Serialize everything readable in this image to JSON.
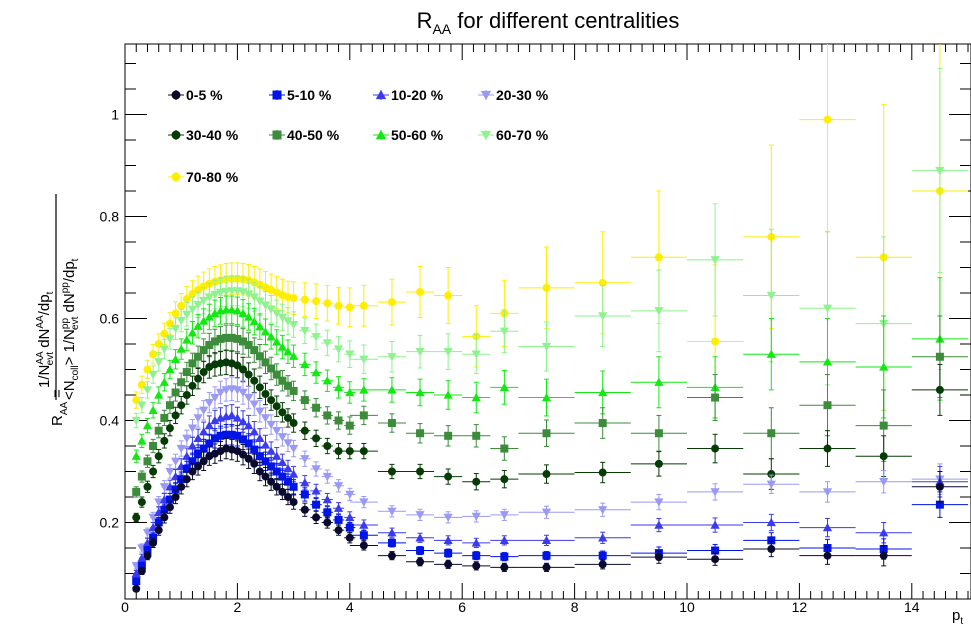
{
  "chart_data": {
    "type": "scatter",
    "title_main": "R",
    "title_sub": "AA",
    "title_rest": " for different centralities",
    "ylabel": {
      "lhs_main": "R",
      "lhs_sub": "AA",
      "eq": "=",
      "num_prefix": "1/N",
      "num_sub": "evt",
      "num_sup": "AA",
      "num_mid": " dN",
      "num_sup2": "AA",
      "num_end": "/dp",
      "num_end_sub": "t",
      "den_a": "<N",
      "den_a_sub": "coll",
      "den_b": "> 1/N",
      "den_b_sup": "pp",
      "den_b_sub": "evt",
      "den_c": " dN",
      "den_c_sup": "pp",
      "den_d": "/dp",
      "den_d_sub": "t"
    },
    "xlabel_main": "p",
    "xlabel_sub": "t",
    "xlim": [
      0,
      15
    ],
    "ylim": [
      0.05,
      1.1
    ],
    "xticks": [
      "0",
      "2",
      "4",
      "6",
      "8",
      "10",
      "12",
      "14"
    ],
    "xtick_values": [
      0,
      2,
      4,
      6,
      8,
      10,
      12,
      14
    ],
    "yticks": [
      "0.2",
      "0.4",
      "0.6",
      "0.8",
      "1"
    ],
    "ytick_values": [
      0.2,
      0.4,
      0.6,
      0.8,
      1.0
    ],
    "grid": false,
    "legend_position": "top-left",
    "x": [
      0.2,
      0.3,
      0.4,
      0.5,
      0.6,
      0.7,
      0.8,
      0.9,
      1.0,
      1.1,
      1.2,
      1.3,
      1.4,
      1.5,
      1.6,
      1.7,
      1.8,
      1.9,
      2.0,
      2.1,
      2.2,
      2.3,
      2.4,
      2.5,
      2.6,
      2.7,
      2.8,
      2.9,
      3.0,
      3.2,
      3.4,
      3.6,
      3.8,
      4.0,
      4.25,
      4.75,
      5.25,
      5.75,
      6.25,
      6.75,
      7.5,
      8.5,
      9.5,
      10.5,
      11.5,
      12.5,
      13.5,
      14.5
    ],
    "xerr": [
      0.05,
      0.05,
      0.05,
      0.05,
      0.05,
      0.05,
      0.05,
      0.05,
      0.05,
      0.05,
      0.05,
      0.05,
      0.05,
      0.05,
      0.05,
      0.05,
      0.05,
      0.05,
      0.05,
      0.05,
      0.05,
      0.05,
      0.05,
      0.05,
      0.05,
      0.05,
      0.05,
      0.05,
      0.05,
      0.1,
      0.1,
      0.1,
      0.1,
      0.1,
      0.25,
      0.25,
      0.25,
      0.25,
      0.25,
      0.25,
      0.5,
      0.5,
      0.5,
      0.5,
      0.5,
      0.5,
      0.5,
      0.5
    ],
    "series": [
      {
        "name": "0-5 %",
        "color": "#0a0a2e",
        "marker": "circle",
        "values": [
          0.07,
          0.105,
          0.135,
          0.16,
          0.185,
          0.21,
          0.23,
          0.25,
          0.27,
          0.285,
          0.3,
          0.31,
          0.32,
          0.33,
          0.335,
          0.34,
          0.345,
          0.343,
          0.34,
          0.333,
          0.325,
          0.315,
          0.3,
          0.29,
          0.28,
          0.27,
          0.26,
          0.25,
          0.24,
          0.225,
          0.21,
          0.2,
          0.185,
          0.17,
          0.155,
          0.135,
          0.123,
          0.118,
          0.115,
          0.112,
          0.112,
          0.118,
          0.132,
          0.128,
          0.148,
          0.135,
          0.135,
          0.27
        ],
        "err": [
          0.005,
          0.007,
          0.008,
          0.009,
          0.01,
          0.011,
          0.012,
          0.013,
          0.014,
          0.015,
          0.016,
          0.017,
          0.018,
          0.018,
          0.019,
          0.019,
          0.02,
          0.02,
          0.02,
          0.02,
          0.019,
          0.019,
          0.018,
          0.018,
          0.017,
          0.016,
          0.015,
          0.015,
          0.014,
          0.013,
          0.012,
          0.011,
          0.01,
          0.01,
          0.009,
          0.008,
          0.008,
          0.008,
          0.008,
          0.008,
          0.008,
          0.009,
          0.012,
          0.012,
          0.015,
          0.017,
          0.02,
          0.03
        ]
      },
      {
        "name": "5-10 %",
        "color": "#0014e6",
        "marker": "square",
        "values": [
          0.085,
          0.115,
          0.145,
          0.17,
          0.2,
          0.225,
          0.245,
          0.265,
          0.285,
          0.305,
          0.32,
          0.335,
          0.345,
          0.355,
          0.365,
          0.37,
          0.372,
          0.372,
          0.37,
          0.363,
          0.355,
          0.343,
          0.33,
          0.32,
          0.31,
          0.3,
          0.29,
          0.28,
          0.27,
          0.255,
          0.235,
          0.22,
          0.205,
          0.19,
          0.175,
          0.16,
          0.145,
          0.14,
          0.135,
          0.133,
          0.135,
          0.135,
          0.14,
          0.145,
          0.165,
          0.15,
          0.148,
          0.235
        ],
        "err": [
          0.005,
          0.007,
          0.008,
          0.009,
          0.01,
          0.011,
          0.012,
          0.013,
          0.014,
          0.015,
          0.016,
          0.017,
          0.018,
          0.018,
          0.019,
          0.019,
          0.02,
          0.02,
          0.02,
          0.02,
          0.019,
          0.019,
          0.018,
          0.018,
          0.017,
          0.016,
          0.015,
          0.015,
          0.014,
          0.013,
          0.012,
          0.011,
          0.01,
          0.01,
          0.009,
          0.008,
          0.008,
          0.008,
          0.008,
          0.008,
          0.008,
          0.009,
          0.012,
          0.012,
          0.015,
          0.017,
          0.02,
          0.025
        ]
      },
      {
        "name": "10-20 %",
        "color": "#3a3aee",
        "marker": "triangle-up",
        "values": [
          0.1,
          0.13,
          0.16,
          0.19,
          0.22,
          0.245,
          0.27,
          0.29,
          0.31,
          0.33,
          0.35,
          0.365,
          0.378,
          0.39,
          0.4,
          0.405,
          0.408,
          0.41,
          0.405,
          0.398,
          0.39,
          0.378,
          0.365,
          0.352,
          0.34,
          0.33,
          0.318,
          0.306,
          0.295,
          0.278,
          0.262,
          0.245,
          0.228,
          0.21,
          0.195,
          0.18,
          0.17,
          0.165,
          0.16,
          0.165,
          0.165,
          0.17,
          0.195,
          0.195,
          0.2,
          0.19,
          0.18,
          0.28
        ],
        "err": [
          0.006,
          0.008,
          0.009,
          0.01,
          0.011,
          0.012,
          0.013,
          0.014,
          0.015,
          0.016,
          0.017,
          0.018,
          0.019,
          0.019,
          0.02,
          0.02,
          0.021,
          0.021,
          0.021,
          0.021,
          0.02,
          0.02,
          0.019,
          0.019,
          0.018,
          0.017,
          0.016,
          0.016,
          0.015,
          0.014,
          0.013,
          0.012,
          0.011,
          0.011,
          0.01,
          0.009,
          0.009,
          0.009,
          0.009,
          0.009,
          0.01,
          0.011,
          0.013,
          0.014,
          0.016,
          0.018,
          0.02,
          0.03
        ]
      },
      {
        "name": "20-30 %",
        "color": "#9a9af6",
        "marker": "triangle-down",
        "values": [
          0.115,
          0.15,
          0.18,
          0.21,
          0.24,
          0.27,
          0.3,
          0.32,
          0.345,
          0.365,
          0.385,
          0.405,
          0.42,
          0.435,
          0.445,
          0.455,
          0.46,
          0.462,
          0.46,
          0.455,
          0.445,
          0.432,
          0.418,
          0.405,
          0.392,
          0.38,
          0.368,
          0.356,
          0.345,
          0.325,
          0.305,
          0.29,
          0.272,
          0.255,
          0.24,
          0.222,
          0.215,
          0.21,
          0.212,
          0.215,
          0.22,
          0.225,
          0.24,
          0.26,
          0.275,
          0.26,
          0.28,
          0.285
        ],
        "err": [
          0.006,
          0.008,
          0.009,
          0.01,
          0.011,
          0.012,
          0.013,
          0.014,
          0.015,
          0.016,
          0.017,
          0.018,
          0.019,
          0.02,
          0.021,
          0.022,
          0.022,
          0.023,
          0.023,
          0.023,
          0.022,
          0.022,
          0.021,
          0.02,
          0.019,
          0.018,
          0.018,
          0.017,
          0.016,
          0.015,
          0.014,
          0.013,
          0.012,
          0.012,
          0.011,
          0.011,
          0.011,
          0.011,
          0.011,
          0.011,
          0.012,
          0.013,
          0.015,
          0.016,
          0.018,
          0.02,
          0.022,
          0.03
        ]
      },
      {
        "name": "30-40 %",
        "color": "#063b06",
        "marker": "circle",
        "values": [
          0.21,
          0.24,
          0.27,
          0.3,
          0.33,
          0.36,
          0.385,
          0.41,
          0.43,
          0.45,
          0.468,
          0.482,
          0.495,
          0.505,
          0.51,
          0.512,
          0.514,
          0.512,
          0.508,
          0.5,
          0.49,
          0.478,
          0.465,
          0.452,
          0.44,
          0.428,
          0.416,
          0.405,
          0.395,
          0.38,
          0.365,
          0.35,
          0.34,
          0.34,
          0.34,
          0.3,
          0.3,
          0.29,
          0.28,
          0.285,
          0.295,
          0.298,
          0.315,
          0.345,
          0.295,
          0.345,
          0.33,
          0.46
        ],
        "err": [
          0.008,
          0.01,
          0.011,
          0.012,
          0.013,
          0.014,
          0.015,
          0.016,
          0.017,
          0.018,
          0.019,
          0.02,
          0.021,
          0.022,
          0.023,
          0.023,
          0.024,
          0.024,
          0.024,
          0.024,
          0.023,
          0.023,
          0.022,
          0.021,
          0.02,
          0.02,
          0.019,
          0.018,
          0.018,
          0.017,
          0.016,
          0.015,
          0.015,
          0.015,
          0.015,
          0.014,
          0.014,
          0.015,
          0.016,
          0.017,
          0.018,
          0.02,
          0.024,
          0.028,
          0.03,
          0.035,
          0.04,
          0.05
        ]
      },
      {
        "name": "40-50 %",
        "color": "#3c8c3c",
        "marker": "square",
        "values": [
          0.26,
          0.29,
          0.32,
          0.35,
          0.38,
          0.405,
          0.43,
          0.455,
          0.475,
          0.495,
          0.512,
          0.525,
          0.538,
          0.548,
          0.555,
          0.56,
          0.562,
          0.562,
          0.56,
          0.555,
          0.548,
          0.538,
          0.526,
          0.514,
          0.502,
          0.49,
          0.478,
          0.468,
          0.458,
          0.44,
          0.425,
          0.41,
          0.4,
          0.39,
          0.41,
          0.395,
          0.375,
          0.37,
          0.37,
          0.345,
          0.375,
          0.395,
          0.375,
          0.445,
          0.375,
          0.43,
          0.39,
          0.525
        ],
        "err": [
          0.01,
          0.011,
          0.012,
          0.013,
          0.014,
          0.015,
          0.016,
          0.017,
          0.018,
          0.019,
          0.02,
          0.021,
          0.022,
          0.023,
          0.024,
          0.024,
          0.025,
          0.025,
          0.025,
          0.025,
          0.024,
          0.024,
          0.023,
          0.022,
          0.022,
          0.021,
          0.02,
          0.02,
          0.019,
          0.018,
          0.018,
          0.017,
          0.017,
          0.017,
          0.018,
          0.018,
          0.019,
          0.02,
          0.022,
          0.023,
          0.026,
          0.03,
          0.035,
          0.045,
          0.05,
          0.06,
          0.07,
          0.08
        ]
      },
      {
        "name": "50-60 %",
        "color": "#12e812",
        "marker": "triangle-up",
        "values": [
          0.33,
          0.36,
          0.39,
          0.42,
          0.45,
          0.475,
          0.5,
          0.52,
          0.54,
          0.558,
          0.572,
          0.585,
          0.595,
          0.603,
          0.61,
          0.615,
          0.617,
          0.617,
          0.615,
          0.61,
          0.603,
          0.594,
          0.584,
          0.574,
          0.564,
          0.554,
          0.544,
          0.535,
          0.526,
          0.51,
          0.494,
          0.478,
          0.465,
          0.455,
          0.46,
          0.46,
          0.455,
          0.45,
          0.445,
          0.465,
          0.445,
          0.455,
          0.475,
          0.465,
          0.53,
          0.515,
          0.505,
          0.56
        ],
        "err": [
          0.012,
          0.013,
          0.014,
          0.015,
          0.016,
          0.017,
          0.018,
          0.019,
          0.02,
          0.021,
          0.022,
          0.023,
          0.024,
          0.025,
          0.026,
          0.026,
          0.027,
          0.027,
          0.027,
          0.027,
          0.026,
          0.026,
          0.025,
          0.025,
          0.024,
          0.024,
          0.023,
          0.023,
          0.022,
          0.022,
          0.021,
          0.021,
          0.021,
          0.021,
          0.022,
          0.024,
          0.026,
          0.028,
          0.03,
          0.033,
          0.036,
          0.042,
          0.05,
          0.06,
          0.07,
          0.085,
          0.1,
          0.12
        ]
      },
      {
        "name": "60-70 %",
        "color": "#8ef28e",
        "marker": "triangle-down",
        "values": [
          0.4,
          0.43,
          0.46,
          0.49,
          0.515,
          0.54,
          0.56,
          0.58,
          0.596,
          0.608,
          0.618,
          0.627,
          0.635,
          0.642,
          0.647,
          0.651,
          0.653,
          0.654,
          0.654,
          0.652,
          0.648,
          0.642,
          0.634,
          0.626,
          0.618,
          0.61,
          0.602,
          0.595,
          0.588,
          0.576,
          0.564,
          0.552,
          0.54,
          0.53,
          0.52,
          0.525,
          0.535,
          0.535,
          0.53,
          0.575,
          0.545,
          0.605,
          0.615,
          0.715,
          0.645,
          0.62,
          0.59,
          0.89
        ],
        "err": [
          0.014,
          0.015,
          0.016,
          0.017,
          0.018,
          0.019,
          0.02,
          0.021,
          0.022,
          0.023,
          0.024,
          0.025,
          0.026,
          0.027,
          0.028,
          0.028,
          0.029,
          0.029,
          0.029,
          0.029,
          0.028,
          0.028,
          0.028,
          0.027,
          0.027,
          0.026,
          0.026,
          0.026,
          0.025,
          0.025,
          0.025,
          0.025,
          0.025,
          0.026,
          0.028,
          0.03,
          0.032,
          0.035,
          0.038,
          0.042,
          0.048,
          0.06,
          0.08,
          0.11,
          0.13,
          0.15,
          0.17,
          0.2
        ]
      },
      {
        "name": "70-80 %",
        "color": "#ffee00",
        "marker": "circle",
        "values": [
          0.44,
          0.47,
          0.5,
          0.53,
          0.55,
          0.57,
          0.59,
          0.61,
          0.625,
          0.638,
          0.648,
          0.656,
          0.663,
          0.668,
          0.672,
          0.675,
          0.677,
          0.678,
          0.678,
          0.677,
          0.675,
          0.671,
          0.666,
          0.661,
          0.656,
          0.651,
          0.646,
          0.642,
          0.64,
          0.637,
          0.634,
          0.63,
          0.625,
          0.622,
          0.625,
          0.632,
          0.652,
          0.645,
          0.565,
          0.61,
          0.66,
          0.67,
          0.72,
          0.555,
          0.76,
          0.99,
          0.72,
          0.85
        ],
        "err": [
          0.016,
          0.017,
          0.018,
          0.019,
          0.02,
          0.021,
          0.022,
          0.023,
          0.024,
          0.025,
          0.026,
          0.027,
          0.028,
          0.029,
          0.03,
          0.03,
          0.031,
          0.031,
          0.031,
          0.031,
          0.031,
          0.031,
          0.031,
          0.031,
          0.031,
          0.031,
          0.031,
          0.031,
          0.032,
          0.033,
          0.034,
          0.035,
          0.036,
          0.038,
          0.04,
          0.045,
          0.05,
          0.055,
          0.06,
          0.065,
          0.08,
          0.1,
          0.13,
          0.15,
          0.18,
          0.22,
          0.3,
          0.35
        ]
      }
    ]
  }
}
